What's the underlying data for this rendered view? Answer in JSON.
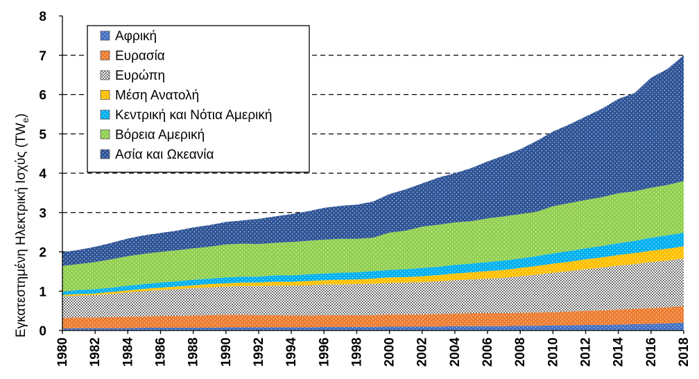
{
  "chart_data": {
    "type": "area",
    "stacked": true,
    "title": "",
    "xlabel": "",
    "ylabel": "Εγκατεστημένη Ηλεκτρική Ισχύς (TW",
    "ylabel_sub": "e",
    "ylabel_close": ")",
    "xlim": [
      1980,
      2018
    ],
    "ylim": [
      0,
      8
    ],
    "yticks": [
      0,
      1,
      2,
      3,
      4,
      5,
      6,
      7,
      8
    ],
    "xticks": [
      1980,
      1982,
      1984,
      1986,
      1988,
      1990,
      1992,
      1994,
      1996,
      1998,
      2000,
      2002,
      2004,
      2006,
      2008,
      2010,
      2012,
      2014,
      2016,
      2018
    ],
    "grid": "horizontal dashed",
    "legend_position": "top-left",
    "x": [
      1980,
      1981,
      1982,
      1983,
      1984,
      1985,
      1986,
      1987,
      1988,
      1989,
      1990,
      1991,
      1992,
      1993,
      1994,
      1995,
      1996,
      1997,
      1998,
      1999,
      2000,
      2001,
      2002,
      2003,
      2004,
      2005,
      2006,
      2007,
      2008,
      2009,
      2010,
      2011,
      2012,
      2013,
      2014,
      2015,
      2016,
      2017,
      2018
    ],
    "series": [
      {
        "name": "Αφρική",
        "color": "#4472C4",
        "values": [
          0.05,
          0.06,
          0.06,
          0.06,
          0.06,
          0.07,
          0.07,
          0.07,
          0.07,
          0.07,
          0.08,
          0.08,
          0.08,
          0.08,
          0.08,
          0.08,
          0.09,
          0.09,
          0.09,
          0.09,
          0.1,
          0.1,
          0.1,
          0.1,
          0.11,
          0.11,
          0.11,
          0.11,
          0.12,
          0.12,
          0.13,
          0.13,
          0.14,
          0.14,
          0.15,
          0.16,
          0.17,
          0.18,
          0.2
        ]
      },
      {
        "name": "Ευρασία",
        "color": "#ED7D31",
        "values": [
          0.27,
          0.27,
          0.27,
          0.28,
          0.29,
          0.29,
          0.3,
          0.3,
          0.31,
          0.32,
          0.32,
          0.32,
          0.31,
          0.31,
          0.3,
          0.3,
          0.3,
          0.3,
          0.3,
          0.3,
          0.31,
          0.31,
          0.31,
          0.32,
          0.32,
          0.33,
          0.33,
          0.33,
          0.33,
          0.34,
          0.34,
          0.35,
          0.36,
          0.37,
          0.38,
          0.39,
          0.4,
          0.41,
          0.42
        ]
      },
      {
        "name": "Ευρώπη",
        "color": "#A6A6A6",
        "values": [
          0.55,
          0.56,
          0.57,
          0.59,
          0.62,
          0.64,
          0.66,
          0.68,
          0.7,
          0.71,
          0.72,
          0.73,
          0.74,
          0.75,
          0.76,
          0.77,
          0.78,
          0.78,
          0.79,
          0.8,
          0.8,
          0.81,
          0.82,
          0.83,
          0.85,
          0.86,
          0.88,
          0.9,
          0.93,
          0.96,
          1.0,
          1.03,
          1.06,
          1.09,
          1.12,
          1.14,
          1.17,
          1.19,
          1.21
        ]
      },
      {
        "name": "Μέση Ανατολή",
        "color": "#FFC000",
        "values": [
          0.03,
          0.04,
          0.04,
          0.05,
          0.05,
          0.06,
          0.06,
          0.07,
          0.07,
          0.08,
          0.08,
          0.09,
          0.09,
          0.1,
          0.1,
          0.11,
          0.11,
          0.12,
          0.12,
          0.13,
          0.14,
          0.14,
          0.15,
          0.16,
          0.17,
          0.18,
          0.19,
          0.2,
          0.21,
          0.22,
          0.23,
          0.24,
          0.25,
          0.26,
          0.27,
          0.28,
          0.29,
          0.3,
          0.31
        ]
      },
      {
        "name": "Κεντρική και Νότια Αμερική",
        "color": "#00B0F0",
        "values": [
          0.09,
          0.1,
          0.11,
          0.11,
          0.12,
          0.12,
          0.13,
          0.13,
          0.14,
          0.14,
          0.15,
          0.15,
          0.15,
          0.16,
          0.16,
          0.17,
          0.17,
          0.18,
          0.18,
          0.19,
          0.19,
          0.2,
          0.21,
          0.21,
          0.22,
          0.22,
          0.23,
          0.24,
          0.24,
          0.25,
          0.26,
          0.27,
          0.28,
          0.29,
          0.3,
          0.31,
          0.33,
          0.34,
          0.35
        ]
      },
      {
        "name": "Βόρεια Αμερική",
        "color": "#92D050",
        "values": [
          0.65,
          0.66,
          0.69,
          0.72,
          0.75,
          0.77,
          0.78,
          0.79,
          0.8,
          0.81,
          0.84,
          0.84,
          0.83,
          0.83,
          0.85,
          0.85,
          0.86,
          0.86,
          0.85,
          0.85,
          0.95,
          0.98,
          1.05,
          1.07,
          1.08,
          1.08,
          1.11,
          1.12,
          1.13,
          1.13,
          1.2,
          1.22,
          1.23,
          1.24,
          1.27,
          1.26,
          1.27,
          1.28,
          1.31
        ]
      },
      {
        "name": "Ασία και Ωκεανία",
        "color": "#2F5597",
        "values": [
          0.35,
          0.36,
          0.39,
          0.42,
          0.45,
          0.47,
          0.48,
          0.5,
          0.53,
          0.55,
          0.57,
          0.59,
          0.64,
          0.67,
          0.71,
          0.75,
          0.81,
          0.84,
          0.87,
          0.92,
          0.98,
          1.05,
          1.1,
          1.2,
          1.25,
          1.35,
          1.45,
          1.55,
          1.65,
          1.8,
          1.9,
          2.0,
          2.12,
          2.25,
          2.4,
          2.5,
          2.8,
          2.95,
          3.2
        ]
      }
    ]
  }
}
